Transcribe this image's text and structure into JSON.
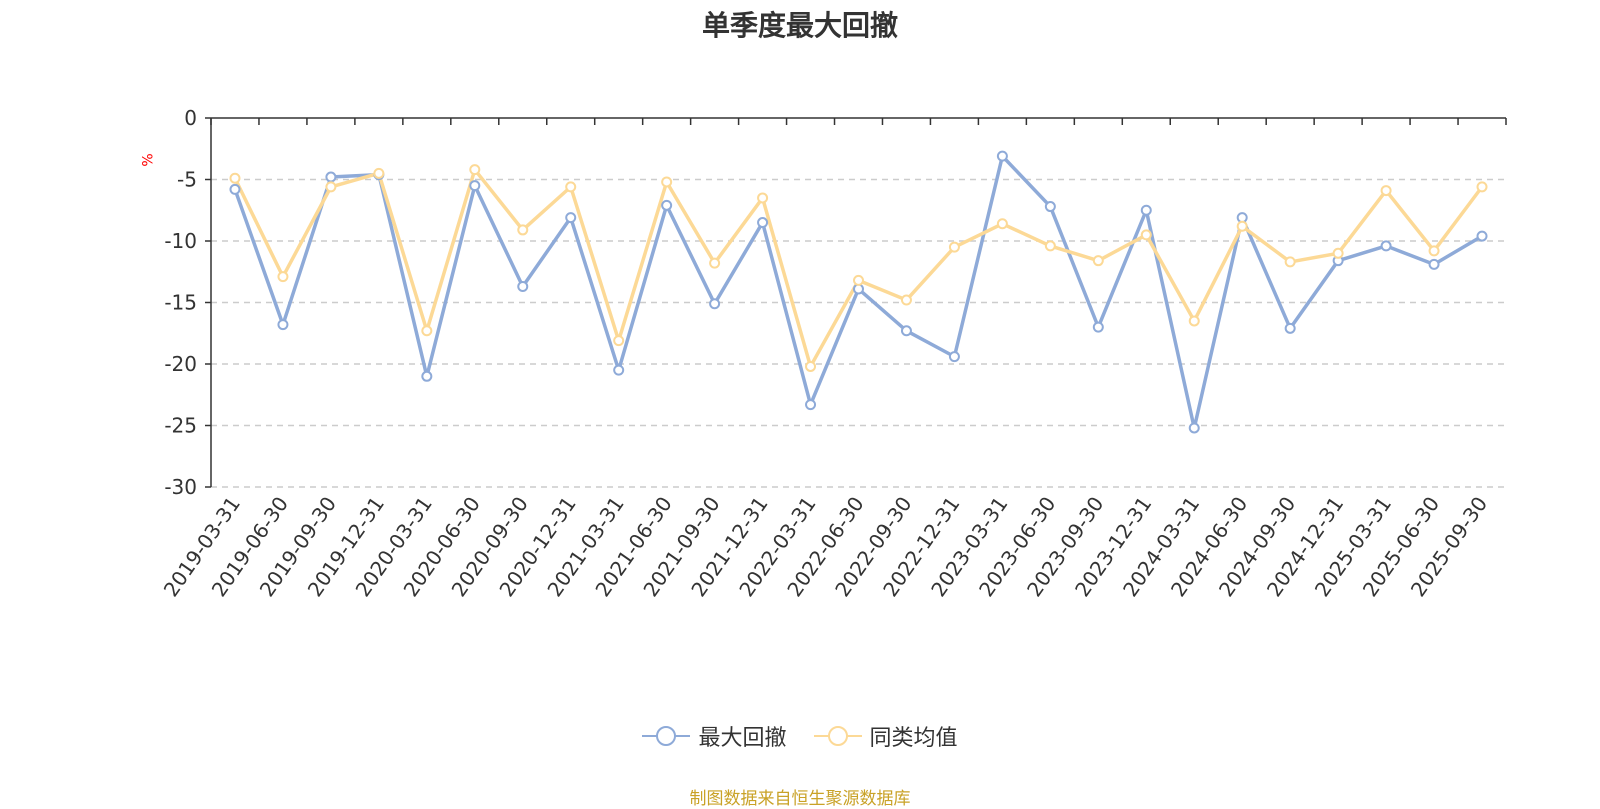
{
  "chart_data": {
    "type": "line",
    "title": "单季度最大回撤",
    "ylabel": "%",
    "xlabel": "",
    "ylim": [
      -30,
      0
    ],
    "yticks": [
      0,
      -5,
      -10,
      -15,
      -20,
      -25,
      -30
    ],
    "grid": true,
    "legend_position": "bottom-center",
    "categories": [
      "2019-03-31",
      "2019-06-30",
      "2019-09-30",
      "2019-12-31",
      "2020-03-31",
      "2020-06-30",
      "2020-09-30",
      "2020-12-31",
      "2021-03-31",
      "2021-06-30",
      "2021-09-30",
      "2021-12-31",
      "2022-03-31",
      "2022-06-30",
      "2022-09-30",
      "2022-12-31",
      "2023-03-31",
      "2023-06-30",
      "2023-09-30",
      "2023-12-31",
      "2024-03-31",
      "2024-06-30",
      "2024-09-30",
      "2024-12-31",
      "2025-03-31",
      "2025-06-30",
      "2025-09-30"
    ],
    "series": [
      {
        "name": "最大回撤",
        "color": "#8eaad8",
        "values": [
          -5.8,
          -16.8,
          -4.8,
          -4.6,
          -21.0,
          -5.5,
          -13.7,
          -8.1,
          -20.5,
          -7.1,
          -15.1,
          -8.5,
          -23.3,
          -13.9,
          -17.3,
          -19.4,
          -3.1,
          -7.2,
          -17.0,
          -7.5,
          -25.2,
          -8.1,
          -17.1,
          -11.6,
          -10.4,
          -11.9,
          -9.6
        ]
      },
      {
        "name": "同类均值",
        "color": "#fcd996",
        "values": [
          -4.9,
          -12.9,
          -5.6,
          -4.5,
          -17.3,
          -4.2,
          -9.1,
          -5.6,
          -18.1,
          -5.2,
          -11.8,
          -6.5,
          -20.2,
          -13.2,
          -14.8,
          -10.5,
          -8.6,
          -10.4,
          -11.6,
          -9.5,
          -16.5,
          -8.8,
          -11.7,
          -11.0,
          -5.9,
          -10.8,
          -5.6
        ]
      }
    ]
  },
  "source_text": "制图数据来自恒生聚源数据库"
}
